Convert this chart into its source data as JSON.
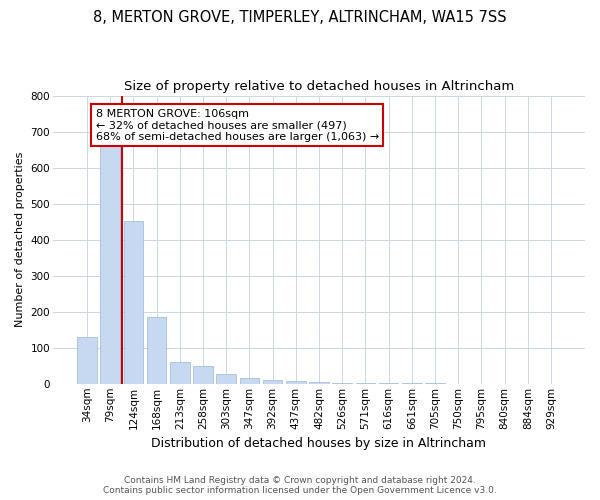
{
  "title": "8, MERTON GROVE, TIMPERLEY, ALTRINCHAM, WA15 7SS",
  "subtitle": "Size of property relative to detached houses in Altrincham",
  "xlabel": "Distribution of detached houses by size in Altrincham",
  "ylabel": "Number of detached properties",
  "categories": [
    "34sqm",
    "79sqm",
    "124sqm",
    "168sqm",
    "213sqm",
    "258sqm",
    "303sqm",
    "347sqm",
    "392sqm",
    "437sqm",
    "482sqm",
    "526sqm",
    "571sqm",
    "616sqm",
    "661sqm",
    "705sqm",
    "750sqm",
    "795sqm",
    "840sqm",
    "884sqm",
    "929sqm"
  ],
  "values": [
    130,
    660,
    452,
    185,
    60,
    48,
    27,
    15,
    10,
    8,
    5,
    2,
    2,
    1,
    1,
    2,
    0,
    0,
    0,
    0,
    0
  ],
  "bar_color": "#c6d9f0",
  "bar_edge_color": "#9ab8d8",
  "vline_x": 1.5,
  "vline_color": "#cc0000",
  "annotation_text": "8 MERTON GROVE: 106sqm\n← 32% of detached houses are smaller (497)\n68% of semi-detached houses are larger (1,063) →",
  "annotation_box_facecolor": "#ffffff",
  "annotation_box_edgecolor": "#cc0000",
  "ylim": [
    0,
    800
  ],
  "yticks": [
    0,
    100,
    200,
    300,
    400,
    500,
    600,
    700,
    800
  ],
  "footer_line1": "Contains HM Land Registry data © Crown copyright and database right 2024.",
  "footer_line2": "Contains public sector information licensed under the Open Government Licence v3.0.",
  "bg_color": "#ffffff",
  "grid_color": "#c8d8e8",
  "title_fontsize": 10.5,
  "subtitle_fontsize": 9.5,
  "xlabel_fontsize": 9,
  "ylabel_fontsize": 8,
  "tick_fontsize": 7.5,
  "annotation_fontsize": 8,
  "footer_fontsize": 6.5,
  "bar_width": 0.85
}
